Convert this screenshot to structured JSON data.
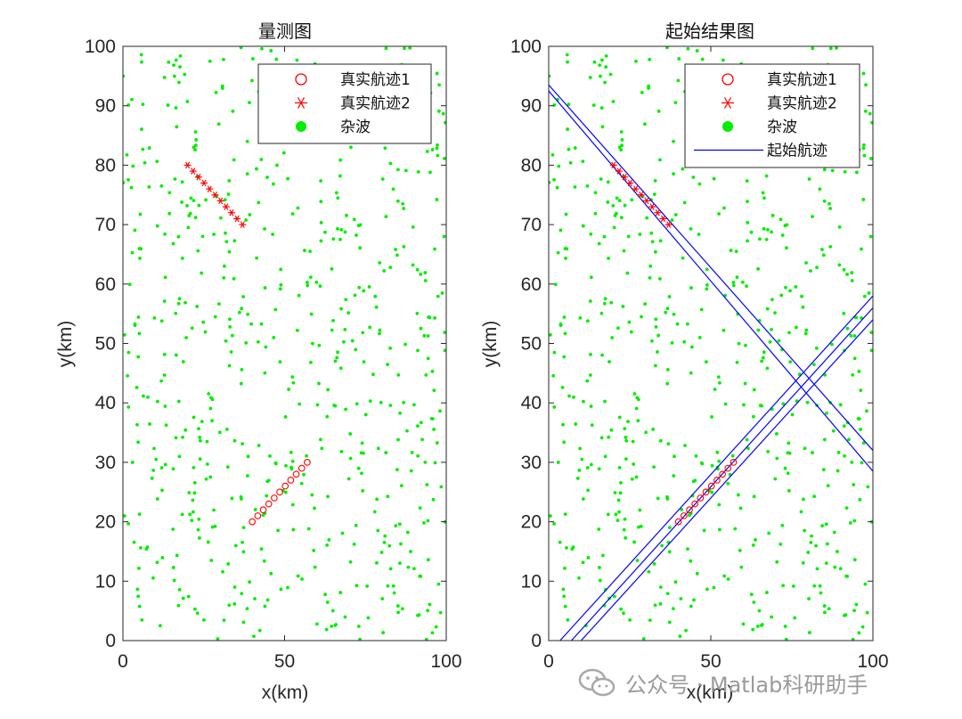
{
  "colors": {
    "track": "#ff0000",
    "clutter": "#00ee00",
    "start_track": "#0000ff",
    "axis": "#262626"
  },
  "panels": [
    {
      "title": "量测图",
      "xlabel": "x(km)",
      "ylabel": "y(km)",
      "xticks": [
        "0",
        "50",
        "100"
      ],
      "yticks": [
        "0",
        "10",
        "20",
        "30",
        "40",
        "50",
        "60",
        "70",
        "80",
        "90",
        "100"
      ],
      "legend": [
        "真实航迹1",
        "真实航迹2",
        "杂波"
      ]
    },
    {
      "title": "起始结果图",
      "xlabel": "x(km)",
      "ylabel": "y(km)",
      "xticks": [
        "0",
        "50",
        "100"
      ],
      "yticks": [
        "0",
        "10",
        "20",
        "30",
        "40",
        "50",
        "60",
        "70",
        "80",
        "90",
        "100"
      ],
      "legend": [
        "真实航迹1",
        "真实航迹2",
        "杂波",
        "起始航迹"
      ]
    }
  ],
  "watermark": "公众号 · Matlab科研助手",
  "chart_data": [
    {
      "type": "scatter",
      "title": "量测图",
      "xlabel": "x(km)",
      "ylabel": "y(km)",
      "xlim": [
        0,
        100
      ],
      "ylim": [
        0,
        100
      ],
      "grid": false,
      "legend_position": "top-right",
      "series": [
        {
          "name": "真实航迹1",
          "marker": "circle",
          "x": [
            40,
            41.7,
            43.4,
            45.1,
            46.8,
            48.5,
            50.2,
            51.9,
            53.6,
            55.3,
            57
          ],
          "y": [
            20,
            21,
            22,
            23,
            24,
            25,
            26,
            27,
            28,
            29,
            30
          ]
        },
        {
          "name": "真实航迹2",
          "marker": "star",
          "x": [
            20,
            21.7,
            23.4,
            25.1,
            26.8,
            28.5,
            30.2,
            31.9,
            33.6,
            35.3,
            37
          ],
          "y": [
            80,
            79,
            78,
            77,
            76,
            75,
            74,
            73,
            72,
            71,
            70
          ]
        },
        {
          "name": "杂波",
          "marker": "dot",
          "points": "random-uniform",
          "count": 600,
          "x_range": [
            0,
            100
          ],
          "y_range": [
            0,
            100
          ]
        }
      ]
    },
    {
      "type": "scatter",
      "title": "起始结果图",
      "xlabel": "x(km)",
      "ylabel": "y(km)",
      "xlim": [
        0,
        100
      ],
      "ylim": [
        0,
        100
      ],
      "grid": false,
      "legend_position": "top-right",
      "series": [
        {
          "name": "真实航迹1",
          "marker": "circle",
          "x": [
            40,
            41.7,
            43.4,
            45.1,
            46.8,
            48.5,
            50.2,
            51.9,
            53.6,
            55.3,
            57
          ],
          "y": [
            20,
            21,
            22,
            23,
            24,
            25,
            26,
            27,
            28,
            29,
            30
          ]
        },
        {
          "name": "真实航迹2",
          "marker": "star",
          "x": [
            20,
            21.7,
            23.4,
            25.1,
            26.8,
            28.5,
            30.2,
            31.9,
            33.6,
            35.3,
            37
          ],
          "y": [
            80,
            79,
            78,
            77,
            76,
            75,
            74,
            73,
            72,
            71,
            70
          ]
        },
        {
          "name": "杂波",
          "marker": "dot",
          "points": "random-uniform",
          "count": 600,
          "x_range": [
            0,
            100
          ],
          "y_range": [
            0,
            100
          ]
        },
        {
          "name": "起始航迹",
          "marker": "line",
          "lines": [
            {
              "x": [
                0,
                100
              ],
              "y": [
                93.5,
                32
              ]
            },
            {
              "x": [
                0,
                100
              ],
              "y": [
                92.5,
                28.5
              ]
            },
            {
              "x": [
                3.5,
                100
              ],
              "y": [
                0,
                58
              ]
            },
            {
              "x": [
                7,
                100
              ],
              "y": [
                0,
                56
              ]
            },
            {
              "x": [
                10,
                100
              ],
              "y": [
                0,
                54
              ]
            }
          ]
        }
      ]
    }
  ]
}
